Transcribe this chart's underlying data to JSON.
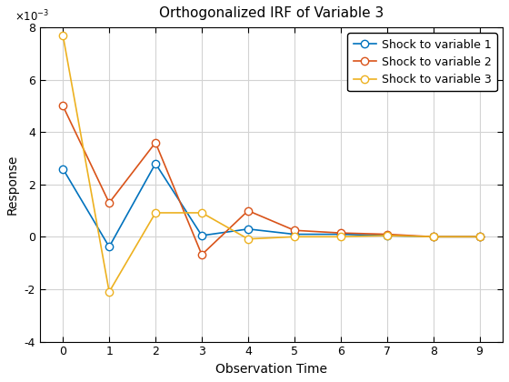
{
  "title": "Orthogonalized IRF of Variable 3",
  "xlabel": "Observation Time",
  "ylabel": "Response",
  "x": [
    0,
    1,
    2,
    3,
    4,
    5,
    6,
    7,
    8,
    9
  ],
  "series": [
    {
      "label": "Shock to variable 1",
      "color": "#0072BD",
      "values": [
        0.0026,
        -0.00038,
        0.0028,
        5e-05,
        0.0003,
        0.0001,
        0.0001,
        5e-05,
        5e-06,
        5e-06
      ]
    },
    {
      "label": "Shock to variable 2",
      "color": "#D95319",
      "values": [
        0.005,
        0.0013,
        0.0036,
        -0.00068,
        0.001,
        0.00025,
        0.00015,
        0.0001,
        5e-06,
        5e-06
      ]
    },
    {
      "label": "Shock to variable 3",
      "color": "#EDB120",
      "values": [
        0.0077,
        -0.0021,
        0.00092,
        0.00092,
        -8e-05,
        5e-06,
        5e-06,
        5e-05,
        5e-06,
        5e-06
      ]
    }
  ],
  "ylim": [
    -0.004,
    0.008
  ],
  "yticks": [
    -4,
    -2,
    0,
    2,
    4,
    6,
    8
  ],
  "xticks": [
    0,
    1,
    2,
    3,
    4,
    5,
    6,
    7,
    8,
    9
  ],
  "grid_color": "#d3d3d3",
  "marker": "o",
  "marker_size": 6,
  "linewidth": 1.2,
  "background_color": "#ffffff",
  "axes_color": "#f0f0f0",
  "title_fontsize": 11,
  "label_fontsize": 10,
  "tick_fontsize": 9,
  "legend_fontsize": 9
}
